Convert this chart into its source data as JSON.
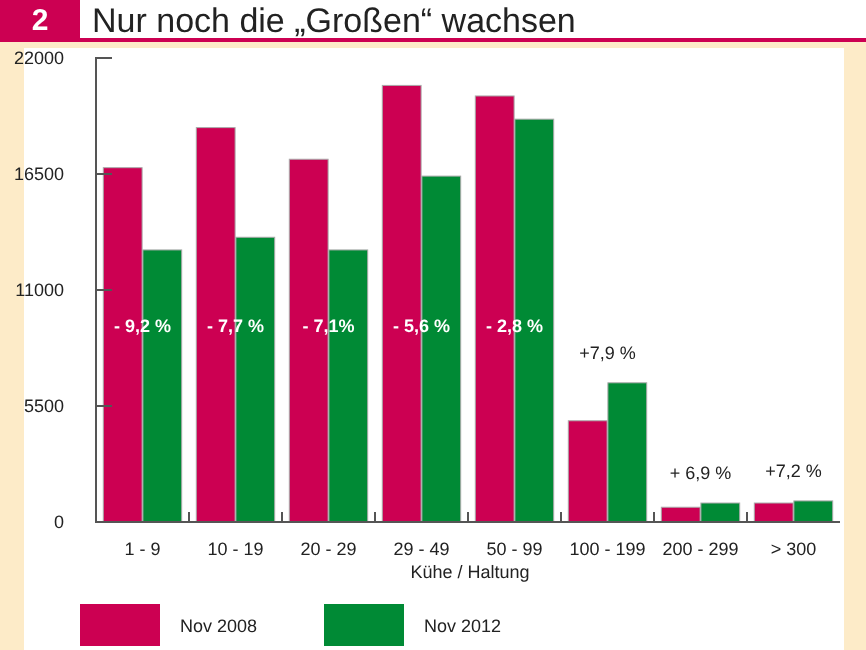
{
  "chart_data": {
    "type": "bar",
    "title": "Nur noch die „Großen“ wachsen",
    "xlabel": "Kühe / Haltung",
    "categories": [
      "1 - 9",
      "10 - 19",
      "20 - 29",
      "29 - 49",
      "50 - 99",
      "100 - 199",
      "200 - 299",
      "> 300"
    ],
    "series": [
      {
        "name": "Nov 2008",
        "color": "#cc0052",
        "values": [
          16800,
          18700,
          17200,
          20700,
          20200,
          4800,
          700,
          900
        ]
      },
      {
        "name": "Nov 2012",
        "color": "#008a35",
        "values": [
          12900,
          13500,
          12900,
          16400,
          19100,
          6600,
          900,
          1000
        ]
      }
    ],
    "ylim": [
      0,
      22000
    ],
    "yticks": [
      0,
      5500,
      11000,
      16500,
      22000
    ],
    "grid": false,
    "legend": "bottom",
    "annotations": [
      "2",
      "- 9,2 %",
      "- 7,7 %",
      "- 7,1%",
      "- 5,6 %",
      "- 2,8 %",
      "+7,9 %",
      "+ 6,9 %",
      "+7,2 %"
    ]
  }
}
